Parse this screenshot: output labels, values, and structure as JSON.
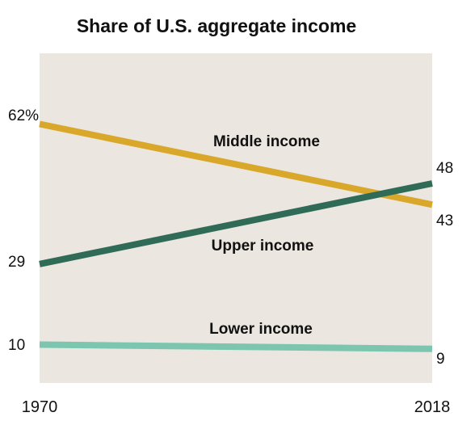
{
  "chart_data": {
    "type": "line",
    "title": "Share of U.S. aggregate income",
    "x": [
      1970,
      2018
    ],
    "x_tick_labels": [
      "1970",
      "2018"
    ],
    "series": [
      {
        "name": "Middle income",
        "values": [
          62,
          43
        ],
        "start_label": "62%",
        "end_label": "43",
        "color": "#d9a82a"
      },
      {
        "name": "Upper income",
        "values": [
          29,
          48
        ],
        "start_label": "29",
        "end_label": "48",
        "color": "#2f6b56"
      },
      {
        "name": "Lower income",
        "values": [
          10,
          9
        ],
        "start_label": "10",
        "end_label": "9",
        "color": "#7cc5ae"
      }
    ],
    "ylim": [
      0,
      72
    ],
    "grid": false,
    "background_color": "#ebe7e0"
  }
}
